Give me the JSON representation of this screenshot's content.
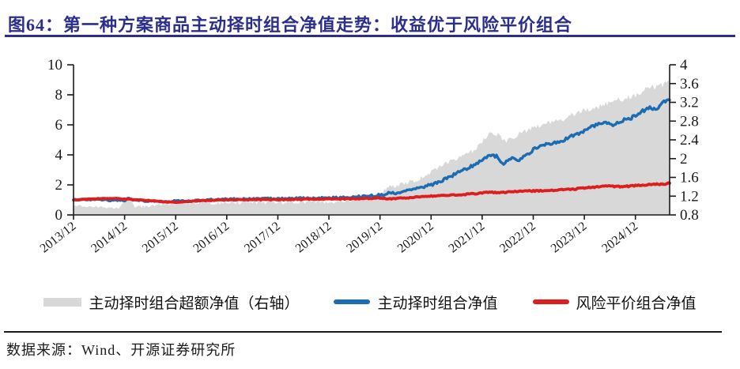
{
  "figure": {
    "title": "图64：第一种方案商品主动择时组合净值走势：收益优于风险平价组合",
    "source": "数据来源：Wind、开源证券研究所",
    "accent_color": "#2b2e8c",
    "text_color": "#1a1a1a"
  },
  "legend": {
    "items": [
      {
        "label": "主动择时组合超额净值（右轴）",
        "swatch": "area"
      },
      {
        "label": "主动择时组合净值",
        "swatch": "line"
      },
      {
        "label": "风险平价组合净值",
        "swatch": "line"
      }
    ]
  },
  "chart_data": {
    "type": "line",
    "title": "",
    "x_unit": "years since 2013/12",
    "x_range": [
      0,
      11.67
    ],
    "x_tick_labels": [
      "2013/12",
      "2014/12",
      "2015/12",
      "2016/12",
      "2017/12",
      "2018/12",
      "2019/12",
      "2020/12",
      "2021/12",
      "2022/12",
      "2023/12",
      "2024/12"
    ],
    "left_axis": {
      "min": 0,
      "max": 10,
      "ticks": [
        0,
        2,
        4,
        6,
        8,
        10
      ]
    },
    "right_axis": {
      "min": 0.8,
      "max": 4,
      "ticks": [
        0.8,
        1.2,
        1.6,
        2,
        2.4,
        2.8,
        3.2,
        3.6,
        4
      ]
    },
    "grid": false,
    "legend_position": "bottom",
    "series": [
      {
        "id": "excess-area",
        "name": "主动择时组合超额净值（右轴）",
        "type": "area",
        "axis": "right",
        "color": "#d8d8d8",
        "noise": 0.07,
        "points": [
          [
            0,
            1.0
          ],
          [
            0.3,
            0.98
          ],
          [
            0.6,
            0.96
          ],
          [
            0.9,
            0.94
          ],
          [
            1.05,
            1.22
          ],
          [
            1.2,
            0.97
          ],
          [
            1.5,
            0.99
          ],
          [
            1.8,
            1.02
          ],
          [
            2.0,
            1.04
          ],
          [
            2.5,
            1.05
          ],
          [
            3.0,
            1.05
          ],
          [
            3.5,
            1.06
          ],
          [
            4.0,
            1.07
          ],
          [
            4.5,
            1.07
          ],
          [
            5.0,
            1.08
          ],
          [
            5.4,
            1.12
          ],
          [
            5.7,
            1.16
          ],
          [
            6.0,
            1.28
          ],
          [
            6.2,
            1.4
          ],
          [
            6.5,
            1.48
          ],
          [
            6.8,
            1.58
          ],
          [
            7.0,
            1.7
          ],
          [
            7.2,
            1.85
          ],
          [
            7.5,
            2.0
          ],
          [
            7.8,
            2.15
          ],
          [
            8.0,
            2.35
          ],
          [
            8.15,
            2.55
          ],
          [
            8.3,
            2.5
          ],
          [
            8.45,
            2.35
          ],
          [
            8.6,
            2.45
          ],
          [
            8.8,
            2.55
          ],
          [
            9.0,
            2.68
          ],
          [
            9.3,
            2.78
          ],
          [
            9.6,
            2.85
          ],
          [
            9.9,
            2.98
          ],
          [
            10.2,
            3.08
          ],
          [
            10.5,
            3.18
          ],
          [
            10.8,
            3.28
          ],
          [
            11.0,
            3.35
          ],
          [
            11.2,
            3.48
          ],
          [
            11.45,
            3.55
          ],
          [
            11.67,
            3.62
          ]
        ]
      },
      {
        "id": "active-timing-line",
        "name": "主动择时组合净值",
        "type": "line",
        "axis": "left",
        "color": "#1b6cb3",
        "width": 3.4,
        "noise": 0.12,
        "points": [
          [
            0,
            1.0
          ],
          [
            0.25,
            1.04
          ],
          [
            0.5,
            1.01
          ],
          [
            0.75,
            0.97
          ],
          [
            1.0,
            0.96
          ],
          [
            1.08,
            1.1
          ],
          [
            1.2,
            0.98
          ],
          [
            1.5,
            0.92
          ],
          [
            1.75,
            0.88
          ],
          [
            2.0,
            0.92
          ],
          [
            2.3,
            0.96
          ],
          [
            2.6,
            1.0
          ],
          [
            3.0,
            1.04
          ],
          [
            3.4,
            1.05
          ],
          [
            3.7,
            1.07
          ],
          [
            4.0,
            1.08
          ],
          [
            4.4,
            1.1
          ],
          [
            4.8,
            1.11
          ],
          [
            5.0,
            1.13
          ],
          [
            5.3,
            1.15
          ],
          [
            5.6,
            1.2
          ],
          [
            5.8,
            1.26
          ],
          [
            6.0,
            1.32
          ],
          [
            6.15,
            1.45
          ],
          [
            6.3,
            1.42
          ],
          [
            6.5,
            1.6
          ],
          [
            6.75,
            1.78
          ],
          [
            7.0,
            2.0
          ],
          [
            7.2,
            2.25
          ],
          [
            7.4,
            2.6
          ],
          [
            7.6,
            2.95
          ],
          [
            7.8,
            3.25
          ],
          [
            8.0,
            3.7
          ],
          [
            8.15,
            4.0
          ],
          [
            8.3,
            3.9
          ],
          [
            8.4,
            3.35
          ],
          [
            8.55,
            3.8
          ],
          [
            8.7,
            3.6
          ],
          [
            8.85,
            3.95
          ],
          [
            9.0,
            4.35
          ],
          [
            9.2,
            4.65
          ],
          [
            9.4,
            4.75
          ],
          [
            9.6,
            5.0
          ],
          [
            9.8,
            5.3
          ],
          [
            10.0,
            5.6
          ],
          [
            10.2,
            5.95
          ],
          [
            10.4,
            6.15
          ],
          [
            10.6,
            6.0
          ],
          [
            10.8,
            6.35
          ],
          [
            11.0,
            6.55
          ],
          [
            11.15,
            6.95
          ],
          [
            11.3,
            7.15
          ],
          [
            11.4,
            6.95
          ],
          [
            11.5,
            7.4
          ],
          [
            11.6,
            7.6
          ],
          [
            11.67,
            7.65
          ]
        ]
      },
      {
        "id": "risk-parity-line",
        "name": "风险平价组合净值",
        "type": "line",
        "axis": "left",
        "color": "#de1e1c",
        "width": 3.8,
        "noise": 0.05,
        "points": [
          [
            0,
            1.0
          ],
          [
            0.2,
            1.04
          ],
          [
            0.4,
            1.07
          ],
          [
            0.6,
            1.09
          ],
          [
            0.8,
            1.1
          ],
          [
            1.0,
            1.06
          ],
          [
            1.2,
            1.02
          ],
          [
            1.5,
            0.95
          ],
          [
            1.8,
            0.87
          ],
          [
            2.0,
            0.85
          ],
          [
            2.2,
            0.88
          ],
          [
            2.5,
            0.95
          ],
          [
            2.8,
            0.98
          ],
          [
            3.0,
            1.0
          ],
          [
            3.3,
            1.01
          ],
          [
            3.6,
            1.02
          ],
          [
            4.0,
            1.02
          ],
          [
            4.5,
            1.04
          ],
          [
            5.0,
            1.06
          ],
          [
            5.5,
            1.08
          ],
          [
            6.0,
            1.12
          ],
          [
            6.2,
            1.06
          ],
          [
            6.4,
            1.12
          ],
          [
            6.7,
            1.18
          ],
          [
            7.0,
            1.26
          ],
          [
            7.3,
            1.3
          ],
          [
            7.6,
            1.35
          ],
          [
            7.9,
            1.42
          ],
          [
            8.0,
            1.48
          ],
          [
            8.15,
            1.52
          ],
          [
            8.3,
            1.46
          ],
          [
            8.5,
            1.53
          ],
          [
            8.75,
            1.56
          ],
          [
            9.0,
            1.6
          ],
          [
            9.3,
            1.63
          ],
          [
            9.6,
            1.68
          ],
          [
            9.9,
            1.75
          ],
          [
            10.1,
            1.82
          ],
          [
            10.3,
            1.9
          ],
          [
            10.5,
            1.93
          ],
          [
            10.7,
            1.87
          ],
          [
            11.0,
            1.95
          ],
          [
            11.2,
            2.0
          ],
          [
            11.4,
            2.03
          ],
          [
            11.55,
            2.06
          ],
          [
            11.67,
            2.1
          ]
        ]
      }
    ]
  }
}
